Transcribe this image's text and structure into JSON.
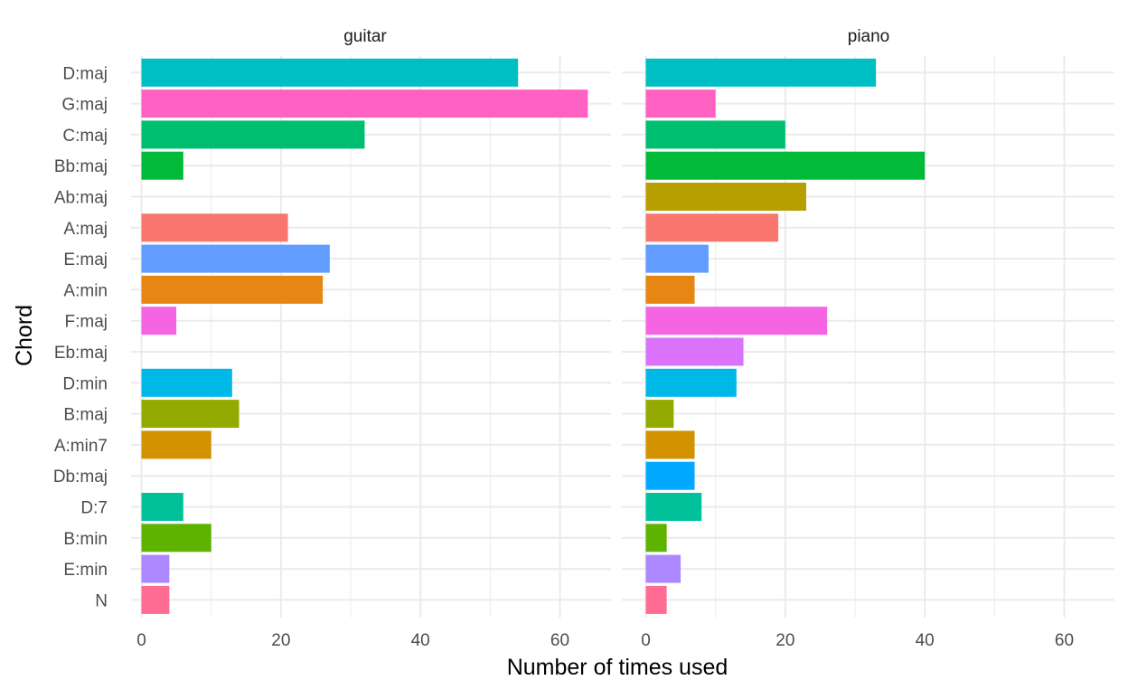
{
  "chart_data": {
    "type": "bar",
    "orientation": "horizontal",
    "facet_by": [
      "guitar",
      "piano"
    ],
    "xlabel": "Number of times used",
    "ylabel": "Chord",
    "xlim": [
      0,
      66
    ],
    "x_ticks": [
      0,
      20,
      40,
      60
    ],
    "grid": true,
    "legend": "none",
    "categories": [
      "D:maj",
      "G:maj",
      "C:maj",
      "Bb:maj",
      "Ab:maj",
      "A:maj",
      "E:maj",
      "A:min",
      "F:maj",
      "Eb:maj",
      "D:min",
      "B:maj",
      "A:min7",
      "Db:maj",
      "D:7",
      "B:min",
      "E:min",
      "N"
    ],
    "colors": {
      "D:maj": "#00BFC4",
      "G:maj": "#FF61C3",
      "C:maj": "#00BE70",
      "Bb:maj": "#00BA38",
      "Ab:maj": "#B79F00",
      "A:maj": "#F8766D",
      "E:maj": "#619CFF",
      "A:min": "#E68613",
      "F:maj": "#F564E3",
      "Eb:maj": "#DB72FB",
      "D:min": "#00B8E7",
      "B:maj": "#93AA00",
      "A:min7": "#D39200",
      "Db:maj": "#00A9FF",
      "D:7": "#00C19A",
      "B:min": "#5EB300",
      "E:min": "#AC88FF",
      "N": "#FF6C91"
    },
    "series": [
      {
        "name": "guitar",
        "values": [
          54,
          64,
          32,
          6,
          0,
          21,
          27,
          26,
          5,
          0,
          13,
          14,
          10,
          0,
          6,
          10,
          4,
          4
        ]
      },
      {
        "name": "piano",
        "values": [
          33,
          10,
          20,
          40,
          23,
          19,
          9,
          7,
          26,
          14,
          13,
          4,
          7,
          7,
          8,
          3,
          5,
          3
        ]
      }
    ]
  }
}
